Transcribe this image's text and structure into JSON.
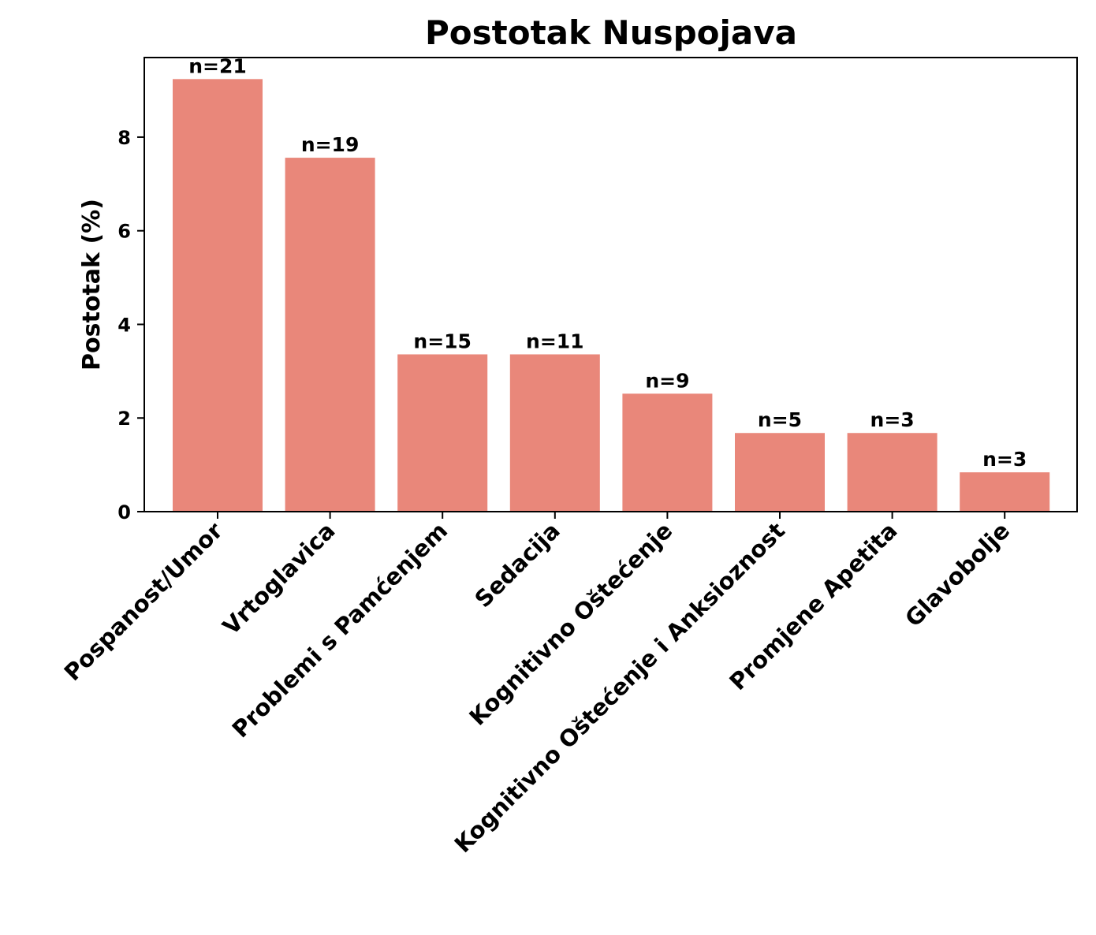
{
  "chart_data": {
    "type": "bar",
    "title": "Postotak Nuspojava",
    "xlabel": "",
    "ylabel": "Postotak (%)",
    "categories": [
      "Pospanost/Umor",
      "Vrtoglavica",
      "Problemi s Pamćenjem",
      "Sedacija",
      "Kognitivno Oštećenje",
      "Kognitivno Oštećenje i Anksioznost",
      "Promjene Apetita",
      "Glavobolje"
    ],
    "values": [
      9.24,
      7.56,
      3.36,
      3.36,
      2.52,
      1.68,
      1.68,
      0.84
    ],
    "data_labels": [
      "n=21",
      "n=19",
      "n=15",
      "n=11",
      "n=9",
      "n=5",
      "n=3",
      "n=3"
    ],
    "yticks": [
      0,
      2,
      4,
      6,
      8
    ],
    "ylim": [
      0,
      9.7
    ],
    "grid": false,
    "legend": "none",
    "bar_color": "#e9877a"
  }
}
